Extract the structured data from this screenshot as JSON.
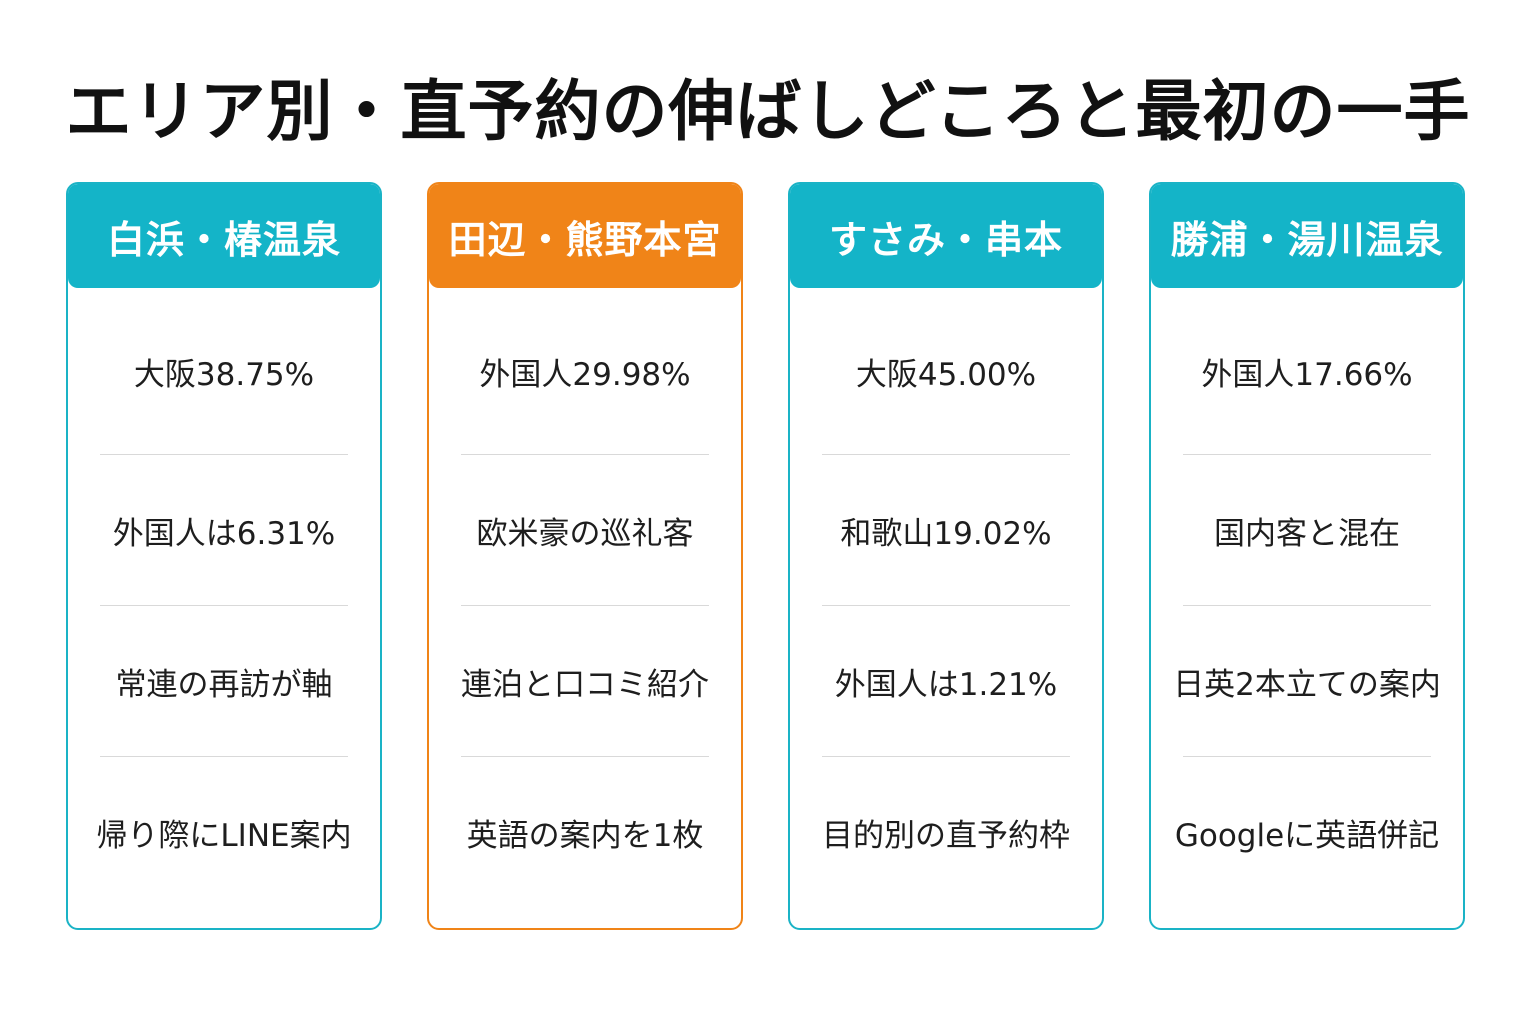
{
  "title": "エリア別・直予約の伸ばしどころと最初の一手",
  "colors": {
    "teal": "#14b4c8",
    "orange": "#f08418",
    "divider": "#d9d9d9"
  },
  "cards": [
    {
      "header": "白浜・椿温泉",
      "rows": [
        "大阪38.75%",
        "外国人は6.31%",
        "常連の再訪が軸",
        "帰り際にLINE案内"
      ]
    },
    {
      "header": "田辺・熊野本宮",
      "rows": [
        "外国人29.98%",
        "欧米豪の巡礼客",
        "連泊と口コミ紹介",
        "英語の案内を1枚"
      ]
    },
    {
      "header": "すさみ・串本",
      "rows": [
        "大阪45.00%",
        "和歌山19.02%",
        "外国人は1.21%",
        "目的別の直予約枠"
      ]
    },
    {
      "header": "勝浦・湯川温泉",
      "rows": [
        "外国人17.66%",
        "国内客と混在",
        "日英2本立ての案内",
        "Googleに英語併記"
      ]
    }
  ]
}
